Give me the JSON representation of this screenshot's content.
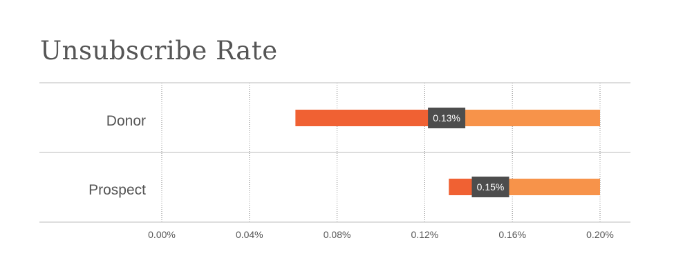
{
  "chart_data": {
    "type": "bar",
    "title": "Unsubscribe Rate",
    "xlabel": "",
    "ylabel": "",
    "categories": [
      "Donor",
      "Prospect"
    ],
    "xlim": [
      0,
      0.2
    ],
    "x_ticks": [
      "0.00%",
      "0.04%",
      "0.08%",
      "0.12%",
      "0.16%",
      "0.20%"
    ],
    "x_tick_values": [
      0,
      0.04,
      0.08,
      0.12,
      0.16,
      0.2
    ],
    "grid": "vertical dotted",
    "rows": [
      {
        "category": "Donor",
        "range_start": 0.061,
        "marker": 0.13,
        "range_end": 0.2,
        "label": "0.13%"
      },
      {
        "category": "Prospect",
        "range_start": 0.131,
        "marker": 0.15,
        "range_end": 0.2,
        "label": "0.15%"
      }
    ],
    "colors": {
      "low_segment": "#f06133",
      "high_segment": "#f7934a",
      "marker_badge": "#4d4d4d",
      "grid": "#888888",
      "divider": "#bbbbbb"
    }
  }
}
